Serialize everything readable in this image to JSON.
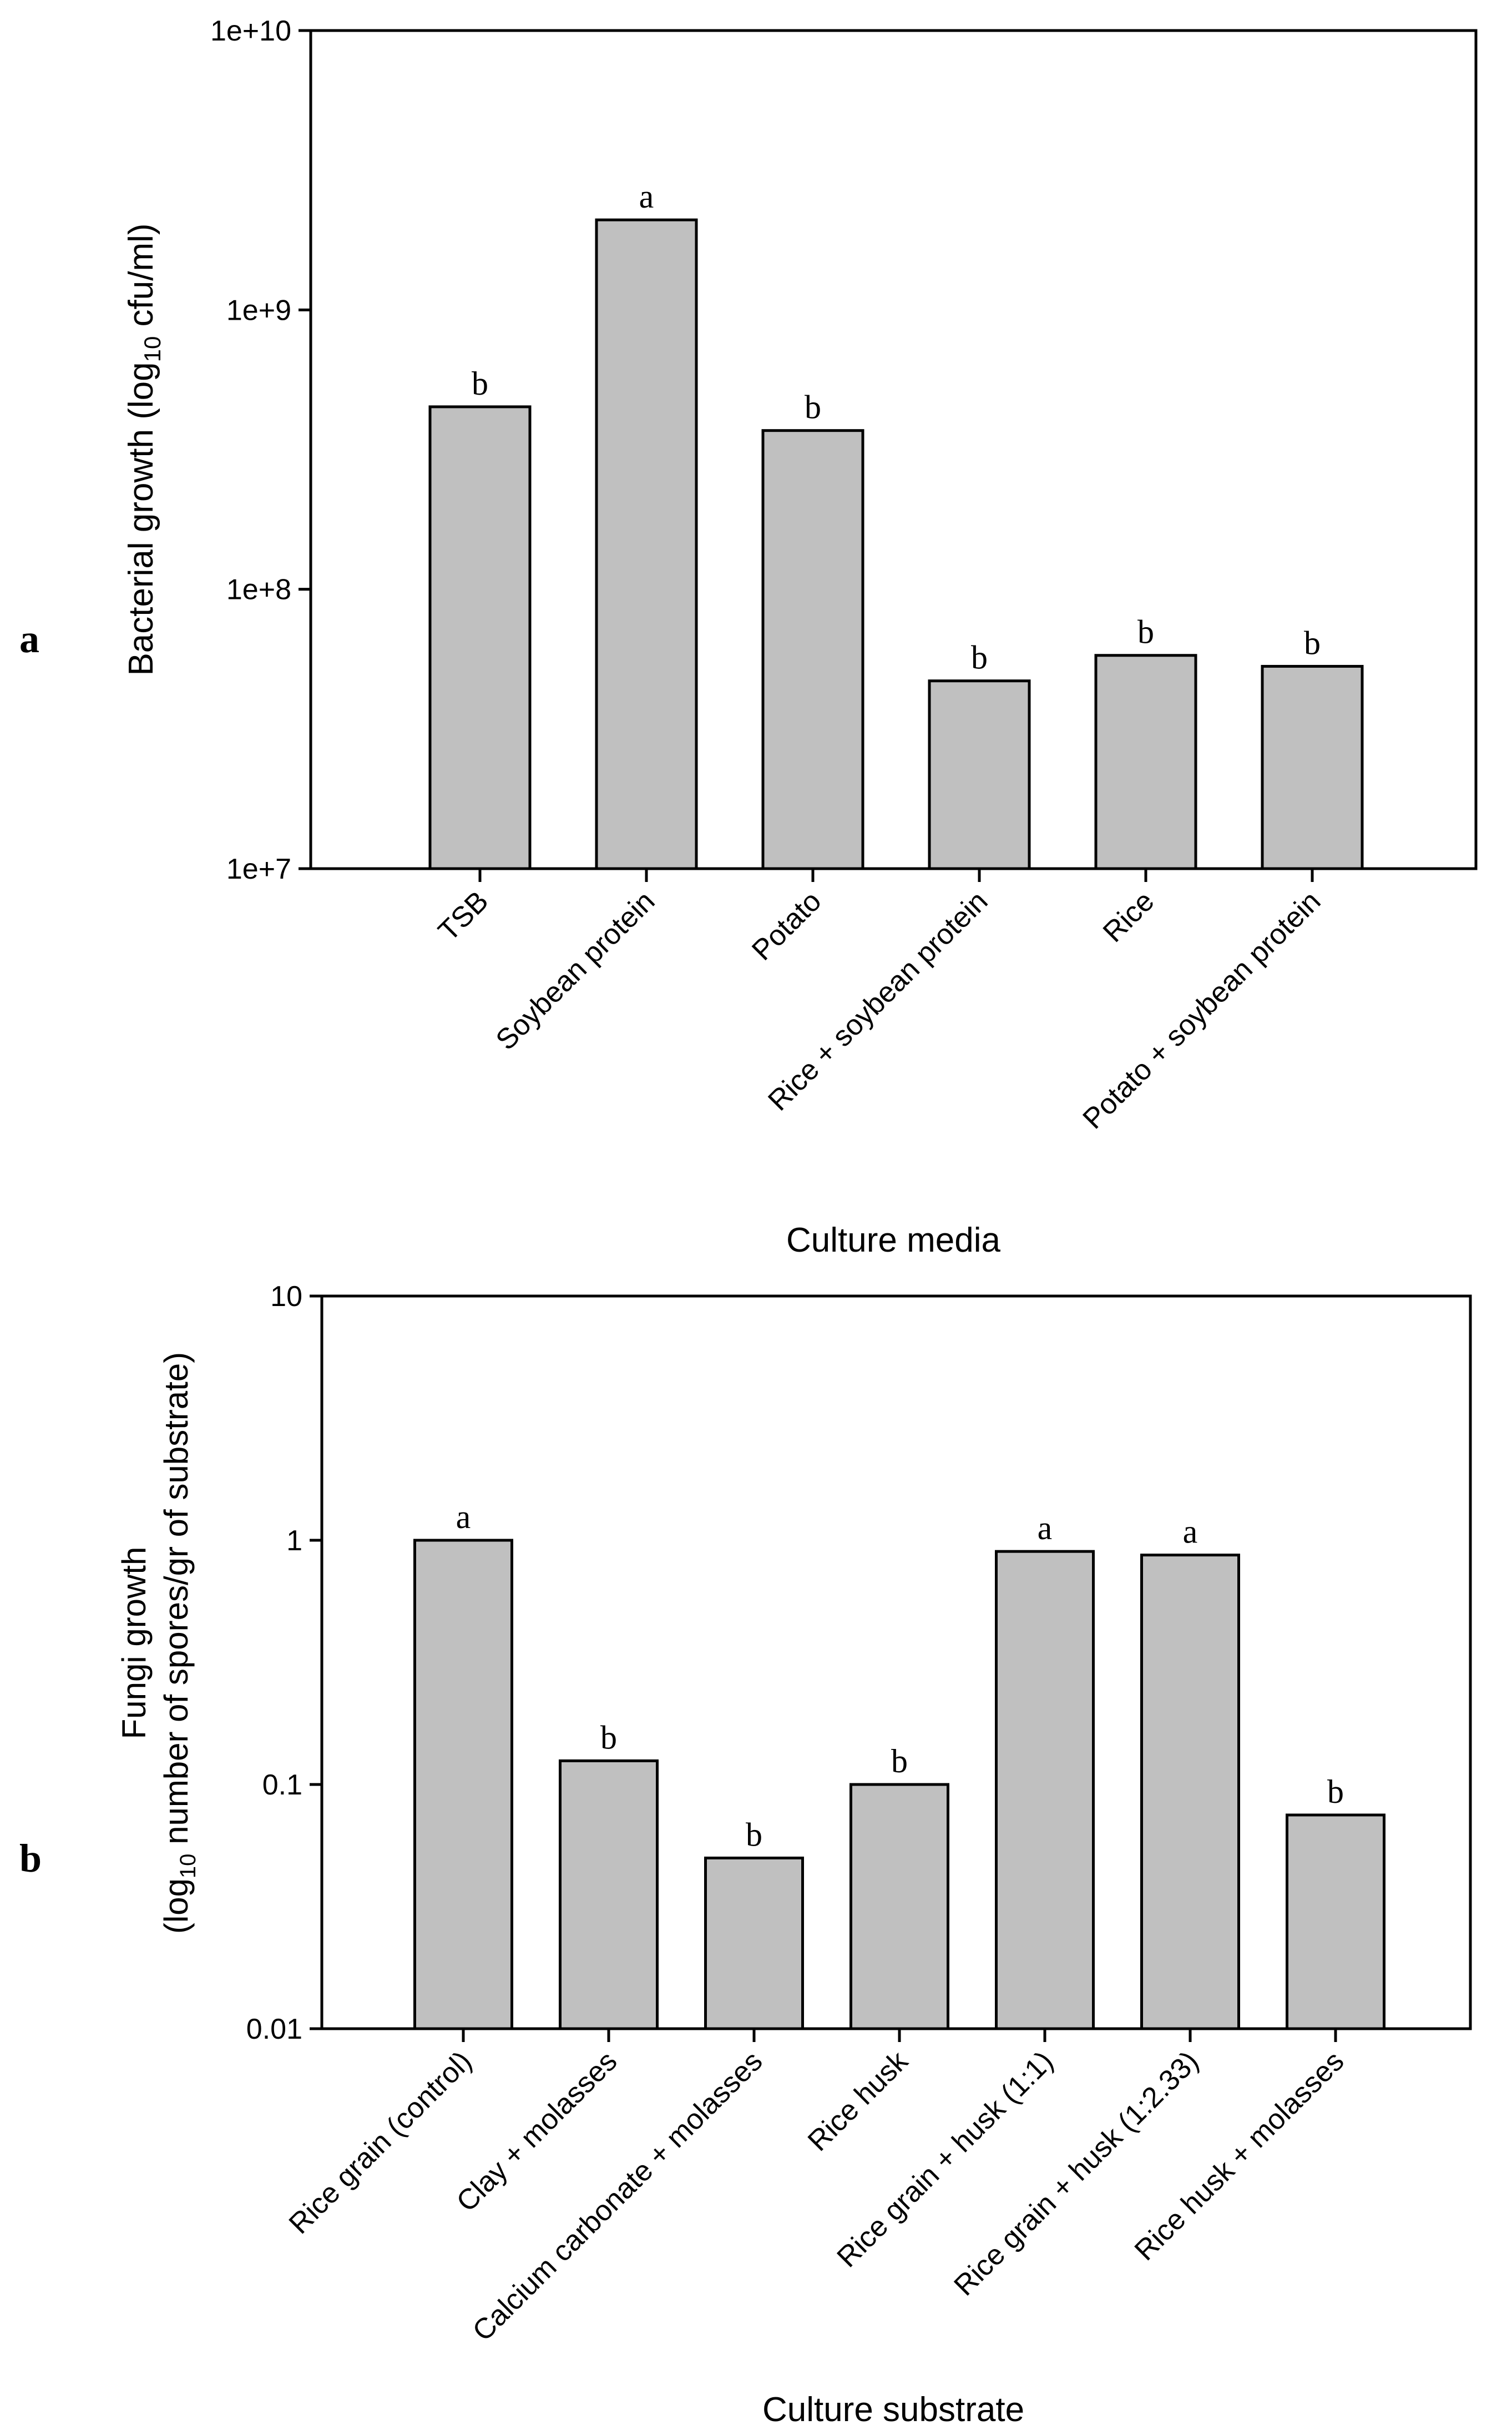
{
  "chart_data": [
    {
      "panel_label": "a",
      "type": "bar",
      "yscale": "log",
      "title": "",
      "xlabel": "Culture media",
      "ylabel": "Bacterial growth (log",
      "ylabel_sub": "10",
      "ylabel_tail": " cfu/ml)",
      "ylim": [
        10000000,
        10000000000
      ],
      "yticks": [
        {
          "value": 10000000,
          "label": "1e+7"
        },
        {
          "value": 100000000,
          "label": "1e+8"
        },
        {
          "value": 1000000000,
          "label": "1e+9"
        },
        {
          "value": 10000000000,
          "label": "1e+10"
        }
      ],
      "categories": [
        "TSB",
        "Soybean protein",
        "Potato",
        "Rice + soybean protein",
        "Rice",
        "Potato + soybean protein"
      ],
      "values": [
        450000000,
        2100000000,
        370000000,
        47000000,
        58000000,
        53000000
      ],
      "annotations": [
        "b",
        "a",
        "b",
        "b",
        "b",
        "b"
      ],
      "bar_color": "#c0c0c0"
    },
    {
      "panel_label": "b",
      "type": "bar",
      "yscale": "log",
      "title": "",
      "xlabel": "Culture substrate",
      "ylabel": "Fungi growth",
      "ylabel2_pre": "(log",
      "ylabel2_sub": "10",
      "ylabel2_tail": " number of spores/gr of substrate)",
      "ylim": [
        0.01,
        10
      ],
      "yticks": [
        {
          "value": 0.01,
          "label": "0.01"
        },
        {
          "value": 0.1,
          "label": "0.1"
        },
        {
          "value": 1,
          "label": "1"
        },
        {
          "value": 10,
          "label": "10"
        }
      ],
      "categories": [
        "Rice grain (control)",
        "Clay + molasses",
        "Calcium carbonate + molasses",
        "Rice husk",
        "Rice grain + husk (1:1)",
        "Rice grain + husk (1:2.33)",
        "Rice husk + molasses"
      ],
      "values": [
        1.0,
        0.125,
        0.05,
        0.1,
        0.9,
        0.87,
        0.075
      ],
      "annotations": [
        "a",
        "b",
        "b",
        "b",
        "a",
        "a",
        "b"
      ],
      "bar_color": "#c0c0c0"
    }
  ]
}
